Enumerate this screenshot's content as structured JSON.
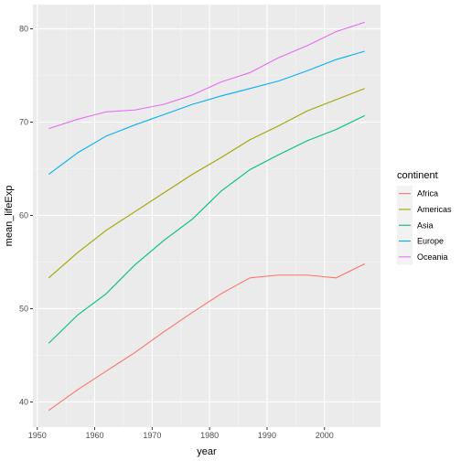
{
  "chart_data": {
    "type": "line",
    "title": "",
    "xlabel": "year",
    "ylabel": "mean_lifeExp",
    "x": [
      1952,
      1957,
      1962,
      1967,
      1972,
      1977,
      1982,
      1987,
      1992,
      1997,
      2002,
      2007
    ],
    "xlim": [
      1949.25,
      2009.75
    ],
    "ylim": [
      37.3,
      82.6
    ],
    "x_ticks": [
      1950,
      1960,
      1970,
      1980,
      1990,
      2000
    ],
    "y_ticks": [
      40,
      50,
      60,
      70,
      80
    ],
    "grid": true,
    "legend_title": "continent",
    "legend_position": "right",
    "series": [
      {
        "name": "Africa",
        "color": "#F8766D",
        "values": [
          39.1,
          41.3,
          43.3,
          45.3,
          47.5,
          49.6,
          51.6,
          53.3,
          53.6,
          53.6,
          53.3,
          54.8
        ]
      },
      {
        "name": "Americas",
        "color": "#A3A500",
        "values": [
          53.3,
          56.0,
          58.4,
          60.4,
          62.4,
          64.4,
          66.2,
          68.1,
          69.6,
          71.2,
          72.4,
          73.6
        ]
      },
      {
        "name": "Asia",
        "color": "#00BF7D",
        "values": [
          46.3,
          49.3,
          51.6,
          54.7,
          57.3,
          59.6,
          62.6,
          64.9,
          66.5,
          68.0,
          69.2,
          70.7
        ]
      },
      {
        "name": "Europe",
        "color": "#00B0F6",
        "values": [
          64.4,
          66.7,
          68.5,
          69.7,
          70.8,
          71.9,
          72.8,
          73.6,
          74.4,
          75.5,
          76.7,
          77.6
        ]
      },
      {
        "name": "Oceania",
        "color": "#E76BF3",
        "values": [
          69.3,
          70.3,
          71.1,
          71.3,
          71.9,
          72.9,
          74.3,
          75.3,
          76.9,
          78.2,
          79.7,
          80.7
        ]
      }
    ]
  }
}
